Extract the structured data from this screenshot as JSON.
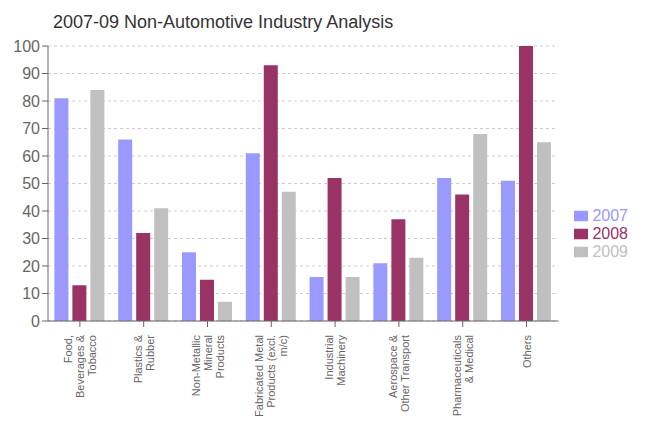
{
  "chart_data": {
    "type": "bar",
    "title": "2007-09 Non-Automotive Industry Analysis",
    "categories": [
      "Food,\nBeverages &\nTobacco",
      "Plastics &\nRubber",
      "Non-Metallic\nMineral\nProducts",
      "Fabricated Metal\nProducts (excl.\nm/c)",
      "Industrial\nMachinery",
      "Aerospace &\nOther Transport",
      "Pharmaceuticals\n& Medical",
      "Others"
    ],
    "series": [
      {
        "name": "2007",
        "color": "#9999FF",
        "values": [
          81,
          66,
          25,
          61,
          16,
          21,
          52,
          51
        ]
      },
      {
        "name": "2008",
        "color": "#993366",
        "values": [
          13,
          32,
          15,
          93,
          52,
          37,
          46,
          100
        ]
      },
      {
        "name": "2009",
        "color": "#C0C0C0",
        "values": [
          84,
          41,
          7,
          47,
          16,
          23,
          68,
          65
        ]
      }
    ],
    "ylim": [
      0,
      100
    ],
    "yticks": [
      0,
      10,
      20,
      30,
      40,
      50,
      60,
      70,
      80,
      90,
      100
    ],
    "grid": true,
    "legend": "right"
  }
}
